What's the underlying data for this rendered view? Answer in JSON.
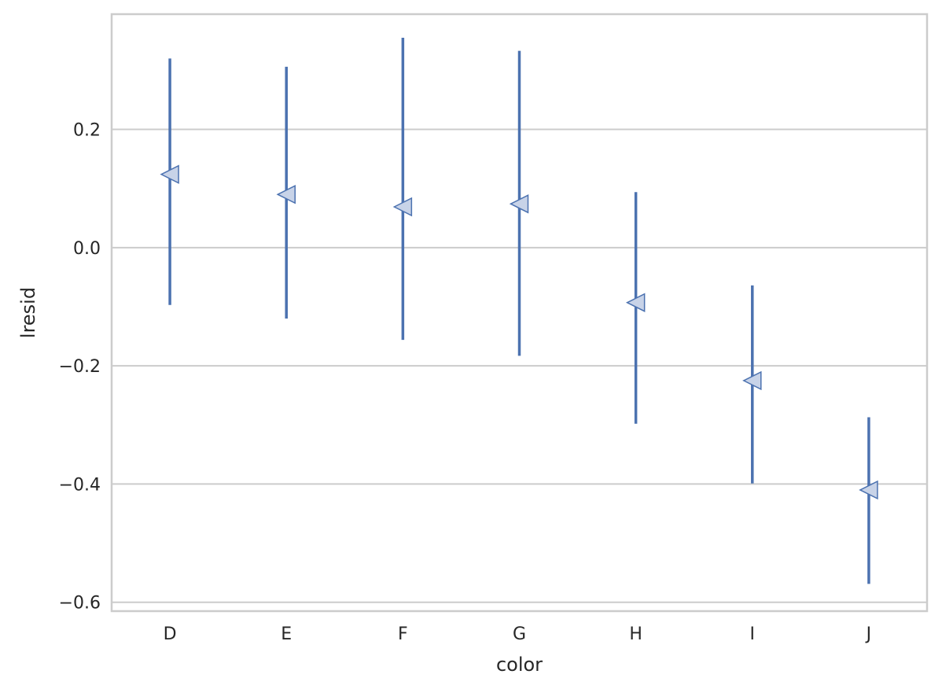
{
  "chart_data": {
    "type": "point",
    "xlabel": "color",
    "ylabel": "lresid",
    "categories": [
      "D",
      "E",
      "F",
      "G",
      "H",
      "I",
      "J"
    ],
    "ylim": [
      -0.615,
      0.395
    ],
    "yticks": [
      -0.6,
      -0.4,
      -0.2,
      0.0,
      0.2
    ],
    "ytick_labels": [
      "−0.6",
      "−0.4",
      "−0.2",
      "0.0",
      "0.2"
    ],
    "grid": "horizontal",
    "series": [
      {
        "values": [
          0.124,
          0.09,
          0.069,
          0.074,
          -0.093,
          -0.225,
          -0.41
        ],
        "ci_low": [
          -0.097,
          -0.12,
          -0.156,
          -0.183,
          -0.298,
          -0.399,
          -0.569
        ],
        "ci_high": [
          0.32,
          0.306,
          0.355,
          0.333,
          0.094,
          -0.064,
          -0.287
        ],
        "marker": "triangle-left",
        "color": "#4c72b0",
        "marker_fill": "#c8d3e8"
      }
    ]
  }
}
